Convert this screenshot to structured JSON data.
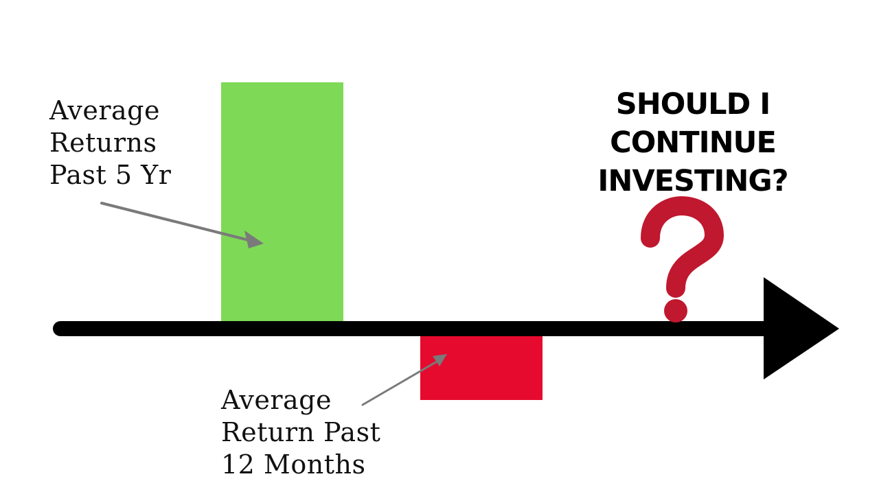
{
  "colors": {
    "background": "#ffffff",
    "axis": "#000000",
    "positive_bar": "#7ed957",
    "negative_bar": "#e60a2e",
    "pointer": "#7a7a7a",
    "question_mark": "#c0182f"
  },
  "labels": {
    "positive": [
      "Average",
      "Returns",
      "Past 5 Yr"
    ],
    "negative": [
      "Average",
      "Return Past",
      "12 Months"
    ]
  },
  "question": {
    "lines": [
      "SHOULD I",
      "CONTINUE",
      "INVESTING?"
    ],
    "icon": "question-mark-icon"
  },
  "bars": {
    "positive_direction": "above-axis",
    "negative_direction": "below-axis"
  }
}
